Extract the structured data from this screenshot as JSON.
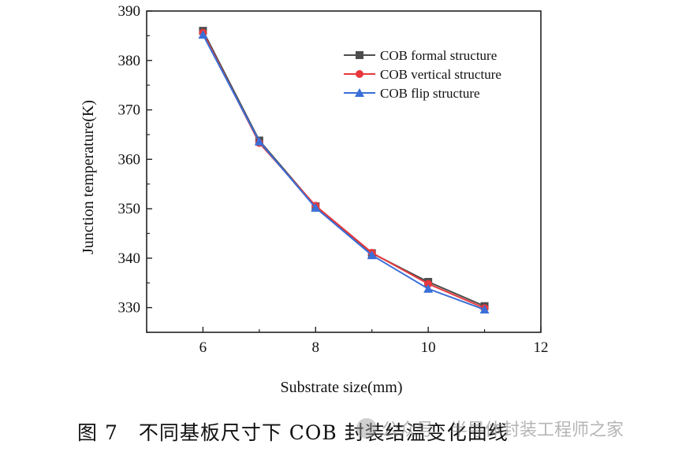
{
  "chart_data": {
    "type": "line",
    "title": "",
    "xlabel": "Substrate size(mm)",
    "ylabel": "Junction temperature(K)",
    "xlim": [
      5,
      12
    ],
    "ylim": [
      325,
      390
    ],
    "xticks": [
      6,
      8,
      10,
      12
    ],
    "yticks": [
      330,
      340,
      350,
      360,
      370,
      380,
      390
    ],
    "grid": false,
    "legend_position": "top-right",
    "x": [
      6,
      7,
      8,
      9,
      10,
      11
    ],
    "series": [
      {
        "name": "COB formal structure",
        "color": "#4d4d4d",
        "marker": "square",
        "values": [
          386.0,
          363.8,
          350.5,
          341.0,
          335.2,
          330.3
        ]
      },
      {
        "name": "COB vertical structure",
        "color": "#e8383d",
        "marker": "circle",
        "values": [
          385.6,
          363.3,
          350.6,
          341.1,
          334.8,
          329.9
        ]
      },
      {
        "name": "COB flip structure",
        "color": "#3a6fd8",
        "marker": "triangle",
        "values": [
          385.2,
          363.6,
          350.2,
          340.6,
          333.8,
          329.6
        ]
      }
    ]
  },
  "caption": {
    "text": "图 7　不同基板尺寸下 COB 封装结温变化曲线",
    "watermark": "公众号 · 半导体封装工程师之家"
  }
}
